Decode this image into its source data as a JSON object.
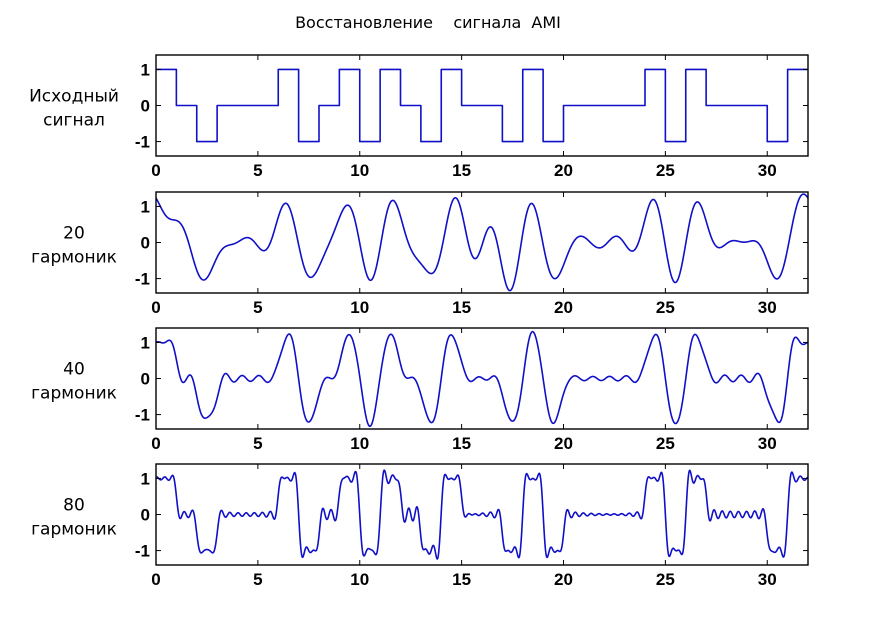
{
  "title": "Восстановление    сигнала  AMI",
  "colors": {
    "line": "#1010c8",
    "axes": "#000000"
  },
  "chart_data": {
    "type": "line",
    "title": "Восстановление    сигнала  AMI",
    "bits": [
      1,
      0,
      -1,
      0,
      0,
      0,
      1,
      -1,
      0,
      1,
      -1,
      1,
      0,
      -1,
      1,
      0,
      0,
      -1,
      1,
      -1,
      0,
      0,
      0,
      0,
      1,
      -1,
      1,
      0,
      0,
      0,
      -1,
      1
    ],
    "panels": [
      {
        "ylabel": [
          "Исходный",
          "сигнал"
        ],
        "kind": "square",
        "harmonics": null,
        "xlim": [
          0,
          32
        ],
        "ylim": [
          -1.4,
          1.4
        ],
        "xticks": [
          "0",
          "5",
          "10",
          "15",
          "20",
          "25",
          "30"
        ],
        "yticks": [
          "1",
          "0",
          "-1"
        ]
      },
      {
        "ylabel": [
          "20",
          "гармоник"
        ],
        "kind": "fourier",
        "harmonics": 20,
        "xlim": [
          0,
          32
        ],
        "ylim": [
          -1.4,
          1.4
        ],
        "xticks": [
          "0",
          "5",
          "10",
          "15",
          "20",
          "25",
          "30"
        ],
        "yticks": [
          "1",
          "0",
          "-1"
        ]
      },
      {
        "ylabel": [
          "40",
          "гармоник"
        ],
        "kind": "fourier",
        "harmonics": 40,
        "xlim": [
          0,
          32
        ],
        "ylim": [
          -1.4,
          1.4
        ],
        "xticks": [
          "0",
          "5",
          "10",
          "15",
          "20",
          "25",
          "30"
        ],
        "yticks": [
          "1",
          "0",
          "-1"
        ]
      },
      {
        "ylabel": [
          "80",
          "гармоник"
        ],
        "kind": "fourier",
        "harmonics": 80,
        "xlim": [
          0,
          32
        ],
        "ylim": [
          -1.4,
          1.4
        ],
        "xticks": [
          "0",
          "5",
          "10",
          "15",
          "20",
          "25",
          "30"
        ],
        "yticks": [
          "1",
          "0",
          "-1"
        ]
      }
    ]
  }
}
